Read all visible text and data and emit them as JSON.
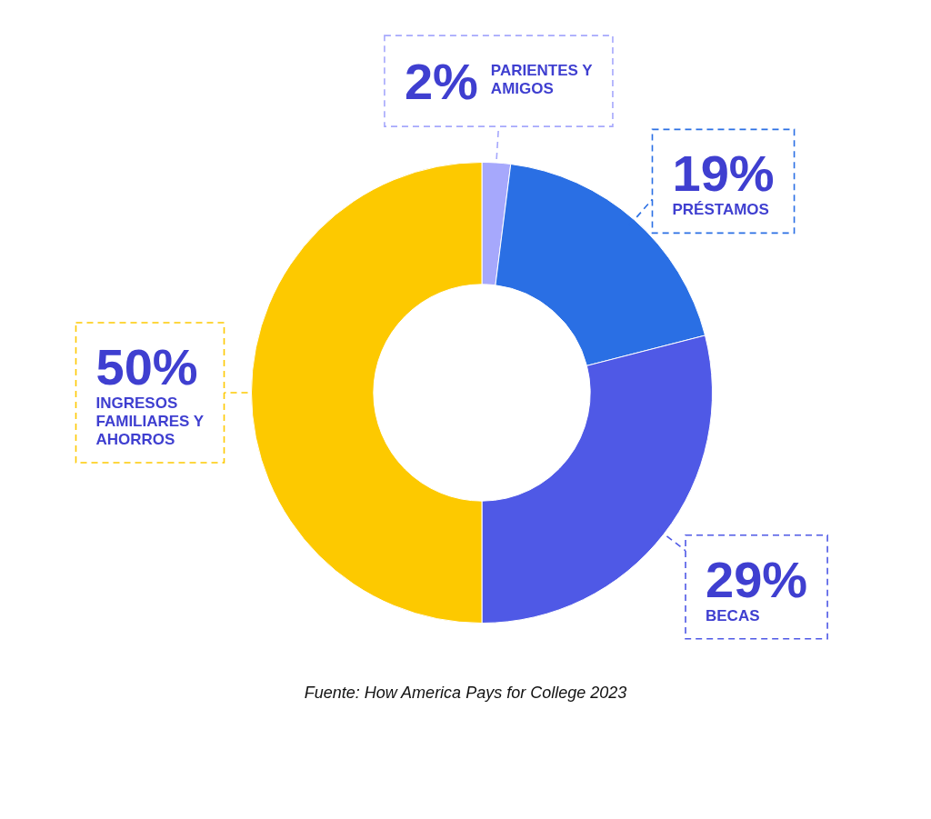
{
  "chart_data": {
    "type": "donut",
    "categories": [
      "PARIENTES Y AMIGOS",
      "PRÉSTAMOS",
      "BECAS",
      "INGRESOS FAMILIARES Y AHORROS"
    ],
    "values": [
      2,
      19,
      29,
      50
    ],
    "value_labels": [
      "2%",
      "19%",
      "29%",
      "50%"
    ],
    "colors": [
      "#a6a8fc",
      "#2a6fe4",
      "#4f59e6",
      "#fdc900"
    ],
    "legend": false,
    "annotations": [
      "Fuente:  How America Pays for College 2023"
    ]
  }
}
